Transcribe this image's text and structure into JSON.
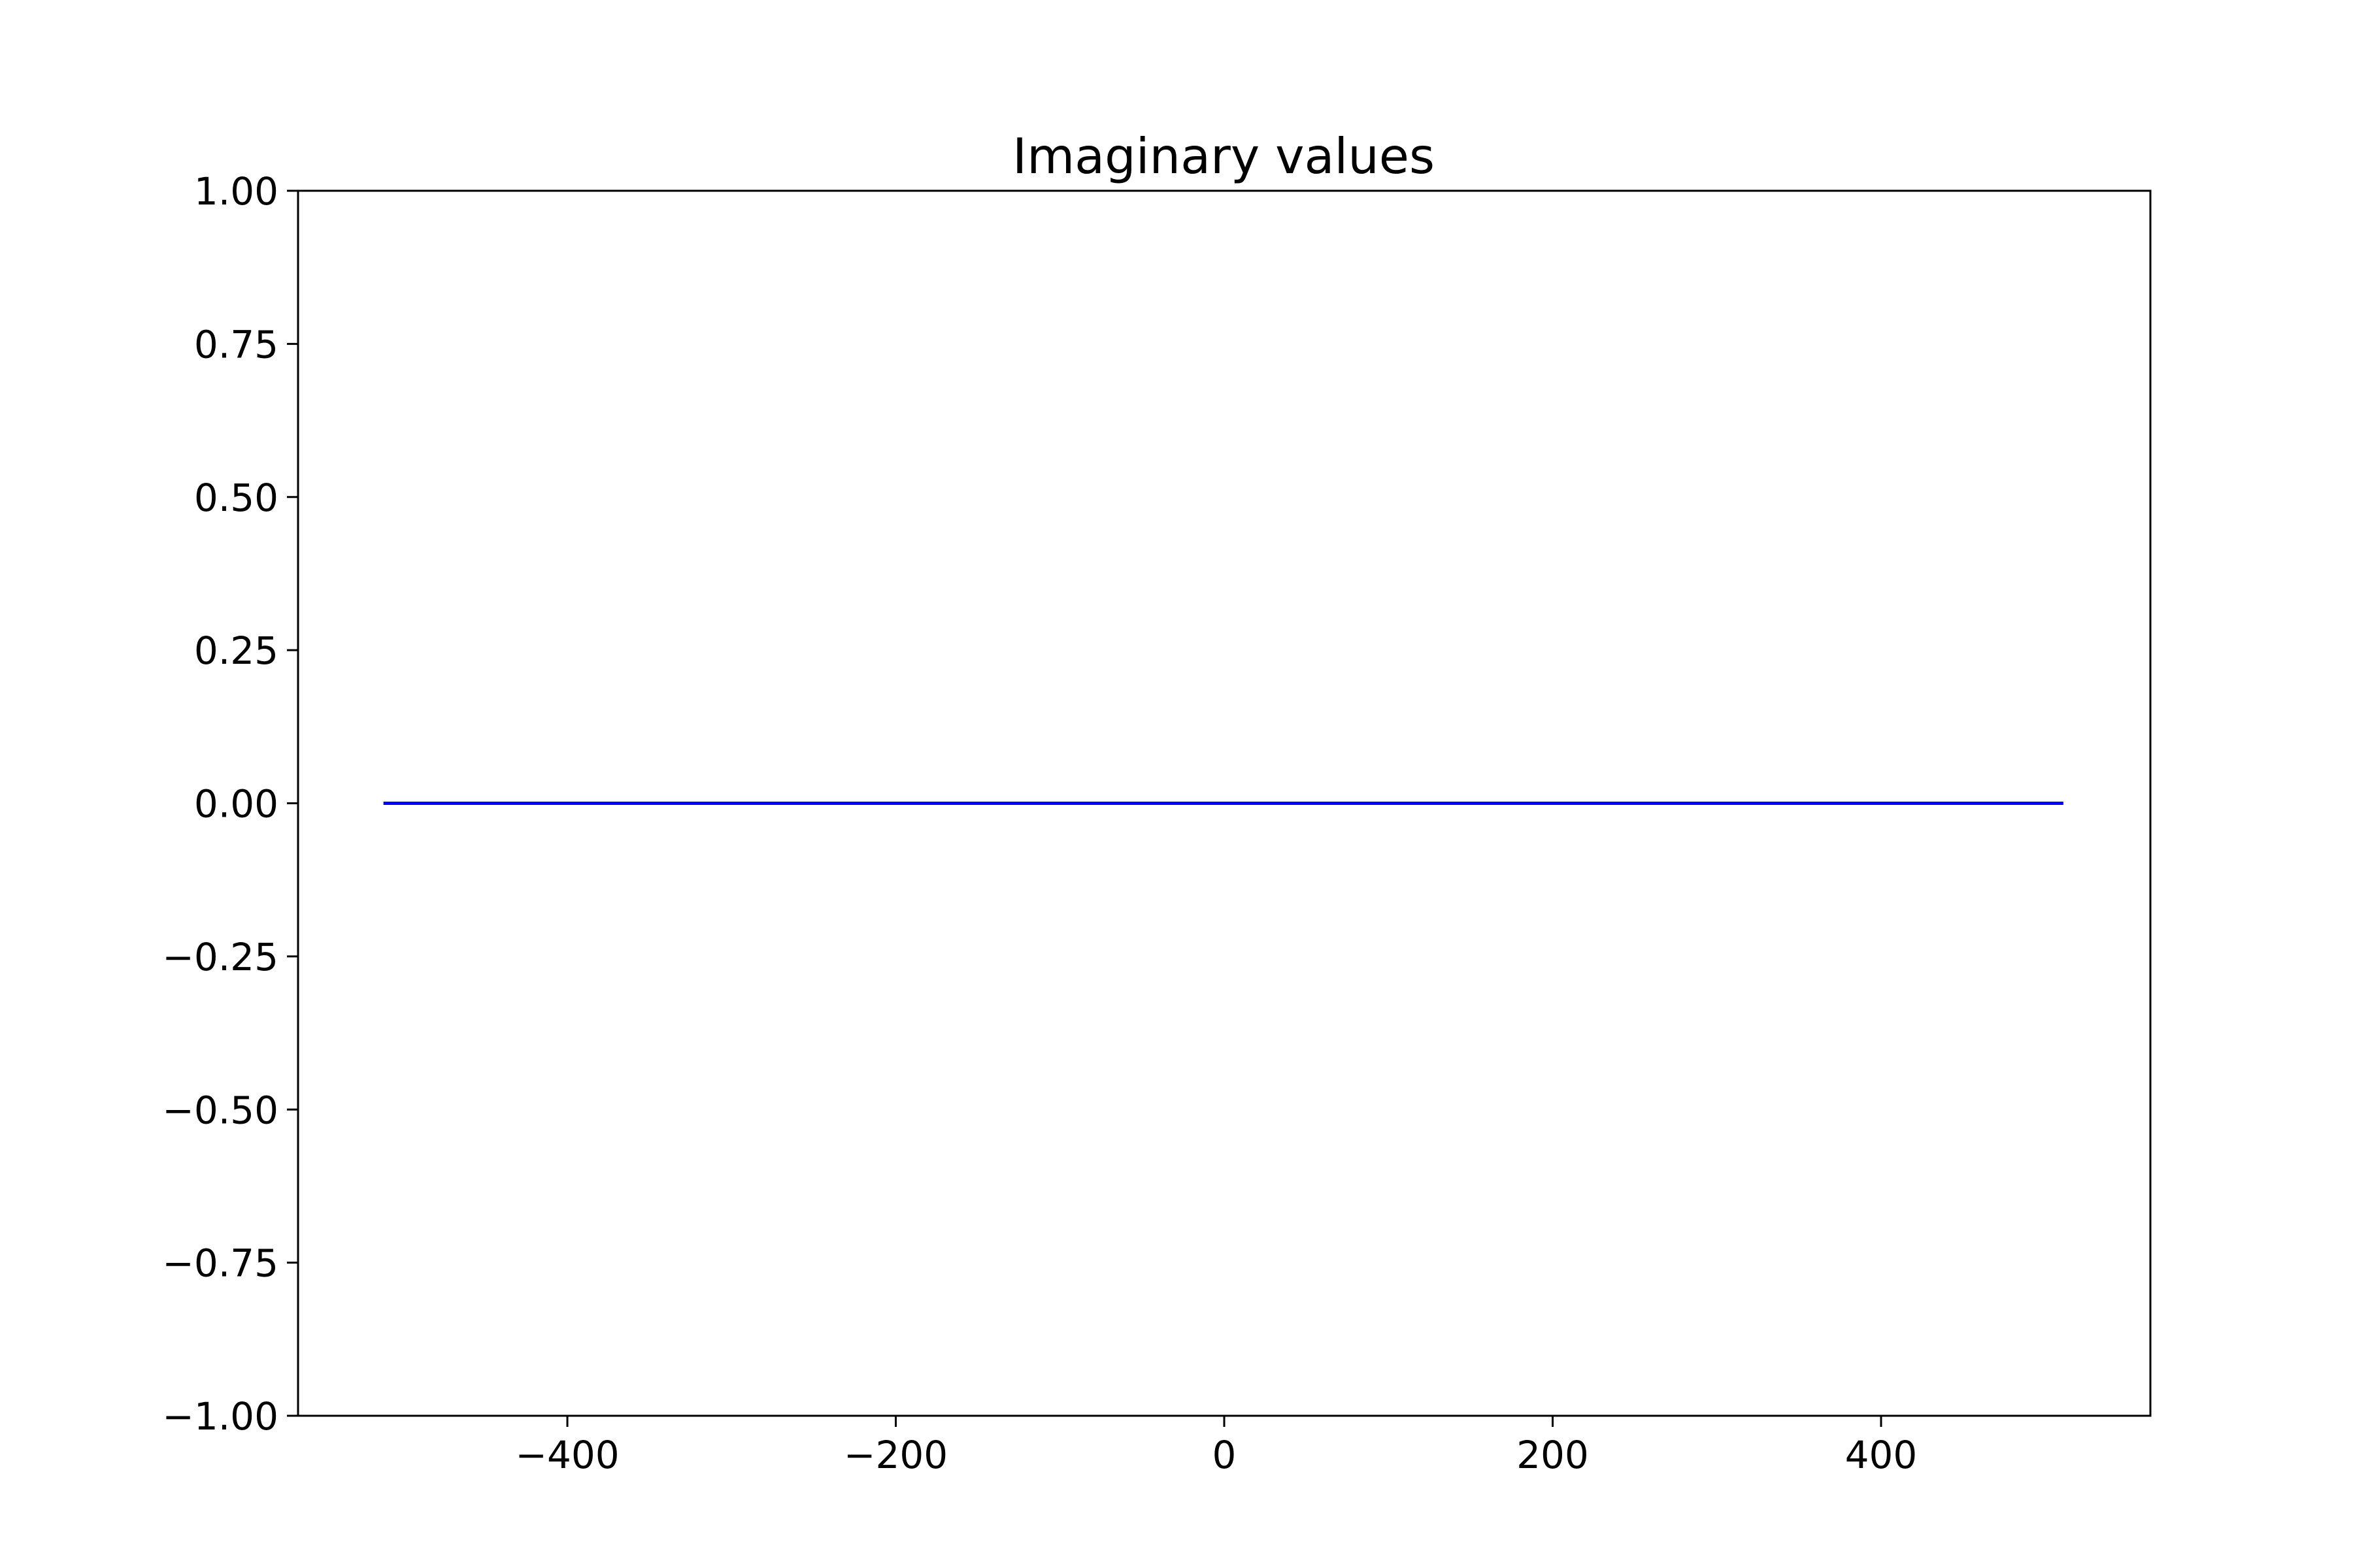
{
  "chart_data": {
    "type": "line",
    "title": "Imaginary values",
    "xlabel": "",
    "ylabel": "",
    "xlim": [
      -564,
      564
    ],
    "ylim": [
      -1.0,
      1.0
    ],
    "grid": false,
    "x_ticks": [
      -400,
      -200,
      0,
      200,
      400
    ],
    "x_tick_labels": [
      "−400",
      "−200",
      "0",
      "200",
      "400"
    ],
    "y_ticks": [
      1.0,
      0.75,
      0.5,
      0.25,
      0.0,
      -0.25,
      -0.5,
      -0.75,
      -1.0
    ],
    "y_tick_labels": [
      "1.00",
      "0.75",
      "0.50",
      "0.25",
      "0.00",
      "−0.25",
      "−0.50",
      "−0.75",
      "−1.00"
    ],
    "series": [
      {
        "color": "#0000ff",
        "x": [
          -512,
          -384,
          -256,
          -128,
          0,
          128,
          256,
          384,
          511
        ],
        "y": [
          0,
          0,
          0,
          0,
          0,
          0,
          0,
          0,
          0
        ]
      }
    ]
  }
}
